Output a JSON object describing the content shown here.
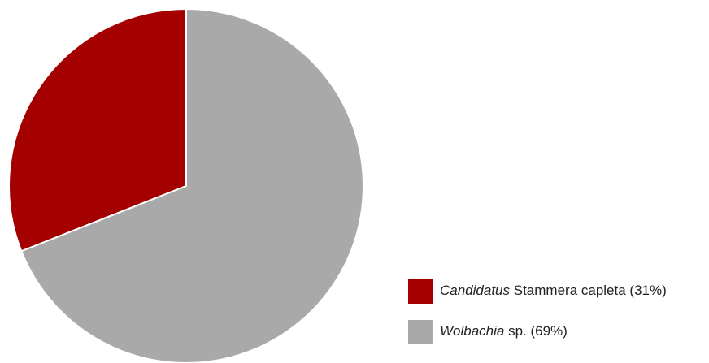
{
  "chart_data": {
    "type": "pie",
    "categories": [
      "Candidatus Stammera capleta (31%)",
      "Wolbachia sp. (69%)"
    ],
    "values": [
      31,
      69
    ],
    "colors": [
      "#a50000",
      "#a9a9a9"
    ]
  }
}
